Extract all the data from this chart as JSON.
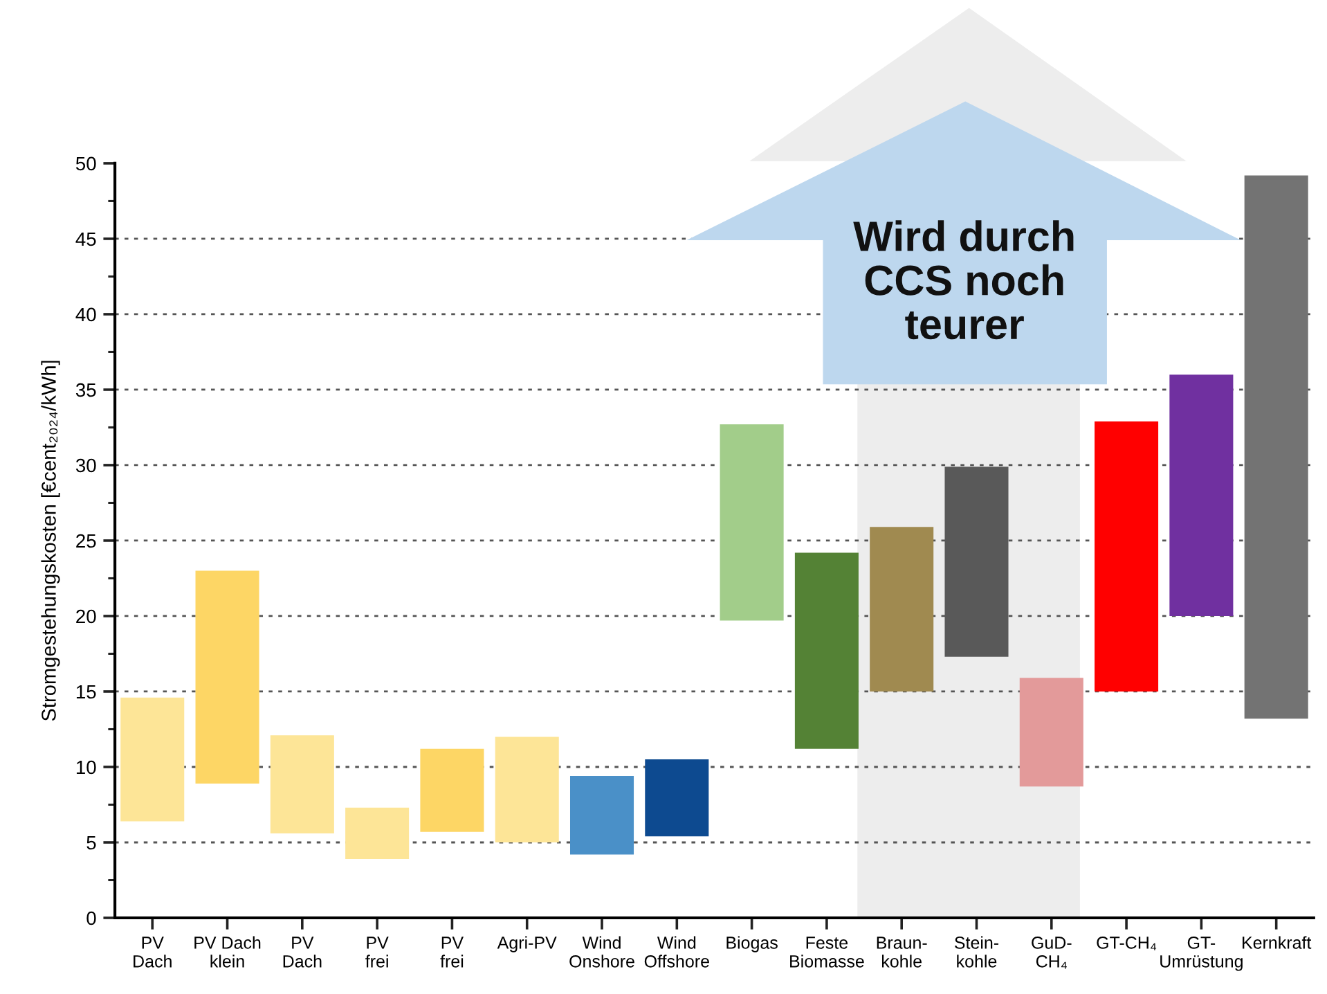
{
  "chart_data": {
    "type": "bar",
    "categories": [
      "PV\nDach",
      "PV Dach\nklein",
      "PV\nDach",
      "PV\nfrei",
      "PV\nfrei",
      "Agri-PV",
      "Wind\nOnshore",
      "Wind\nOffshore",
      "Biogas",
      "Feste\nBiomasse",
      "Braun-\nkohle",
      "Stein-\nkohle",
      "GuD-\nCH₄",
      "GT-CH₄",
      "GT-\nUmrüstung",
      "Kernkraft"
    ],
    "base": [
      6.4,
      8.9,
      5.6,
      3.9,
      5.7,
      5.0,
      4.2,
      5.4,
      19.7,
      11.2,
      15.0,
      17.3,
      8.7,
      15.0,
      20.0,
      13.2
    ],
    "values": [
      8.2,
      14.1,
      6.5,
      3.4,
      5.5,
      7.0,
      5.2,
      5.1,
      13.0,
      13.0,
      10.9,
      12.6,
      7.2,
      17.9,
      16.0,
      36.0
    ],
    "colors": [
      "#fde597",
      "#fdd665",
      "#fde597",
      "#fde597",
      "#fdd665",
      "#fde597",
      "#4a90c8",
      "#0d4a90",
      "#a2cd8a",
      "#548235",
      "#a08a50",
      "#595959",
      "#e39a9a",
      "#ff0000",
      "#7030a0",
      "#737373"
    ],
    "ylabel": "Stromgestehungskosten [€cent₂₀₂₄/kWh]",
    "ylim": [
      0,
      50
    ],
    "yticks": [
      0,
      5,
      10,
      15,
      20,
      25,
      30,
      35,
      40,
      45,
      50
    ],
    "grid": "y",
    "annotations": [
      "Wird durch\nCCS noch\nteurer"
    ]
  }
}
